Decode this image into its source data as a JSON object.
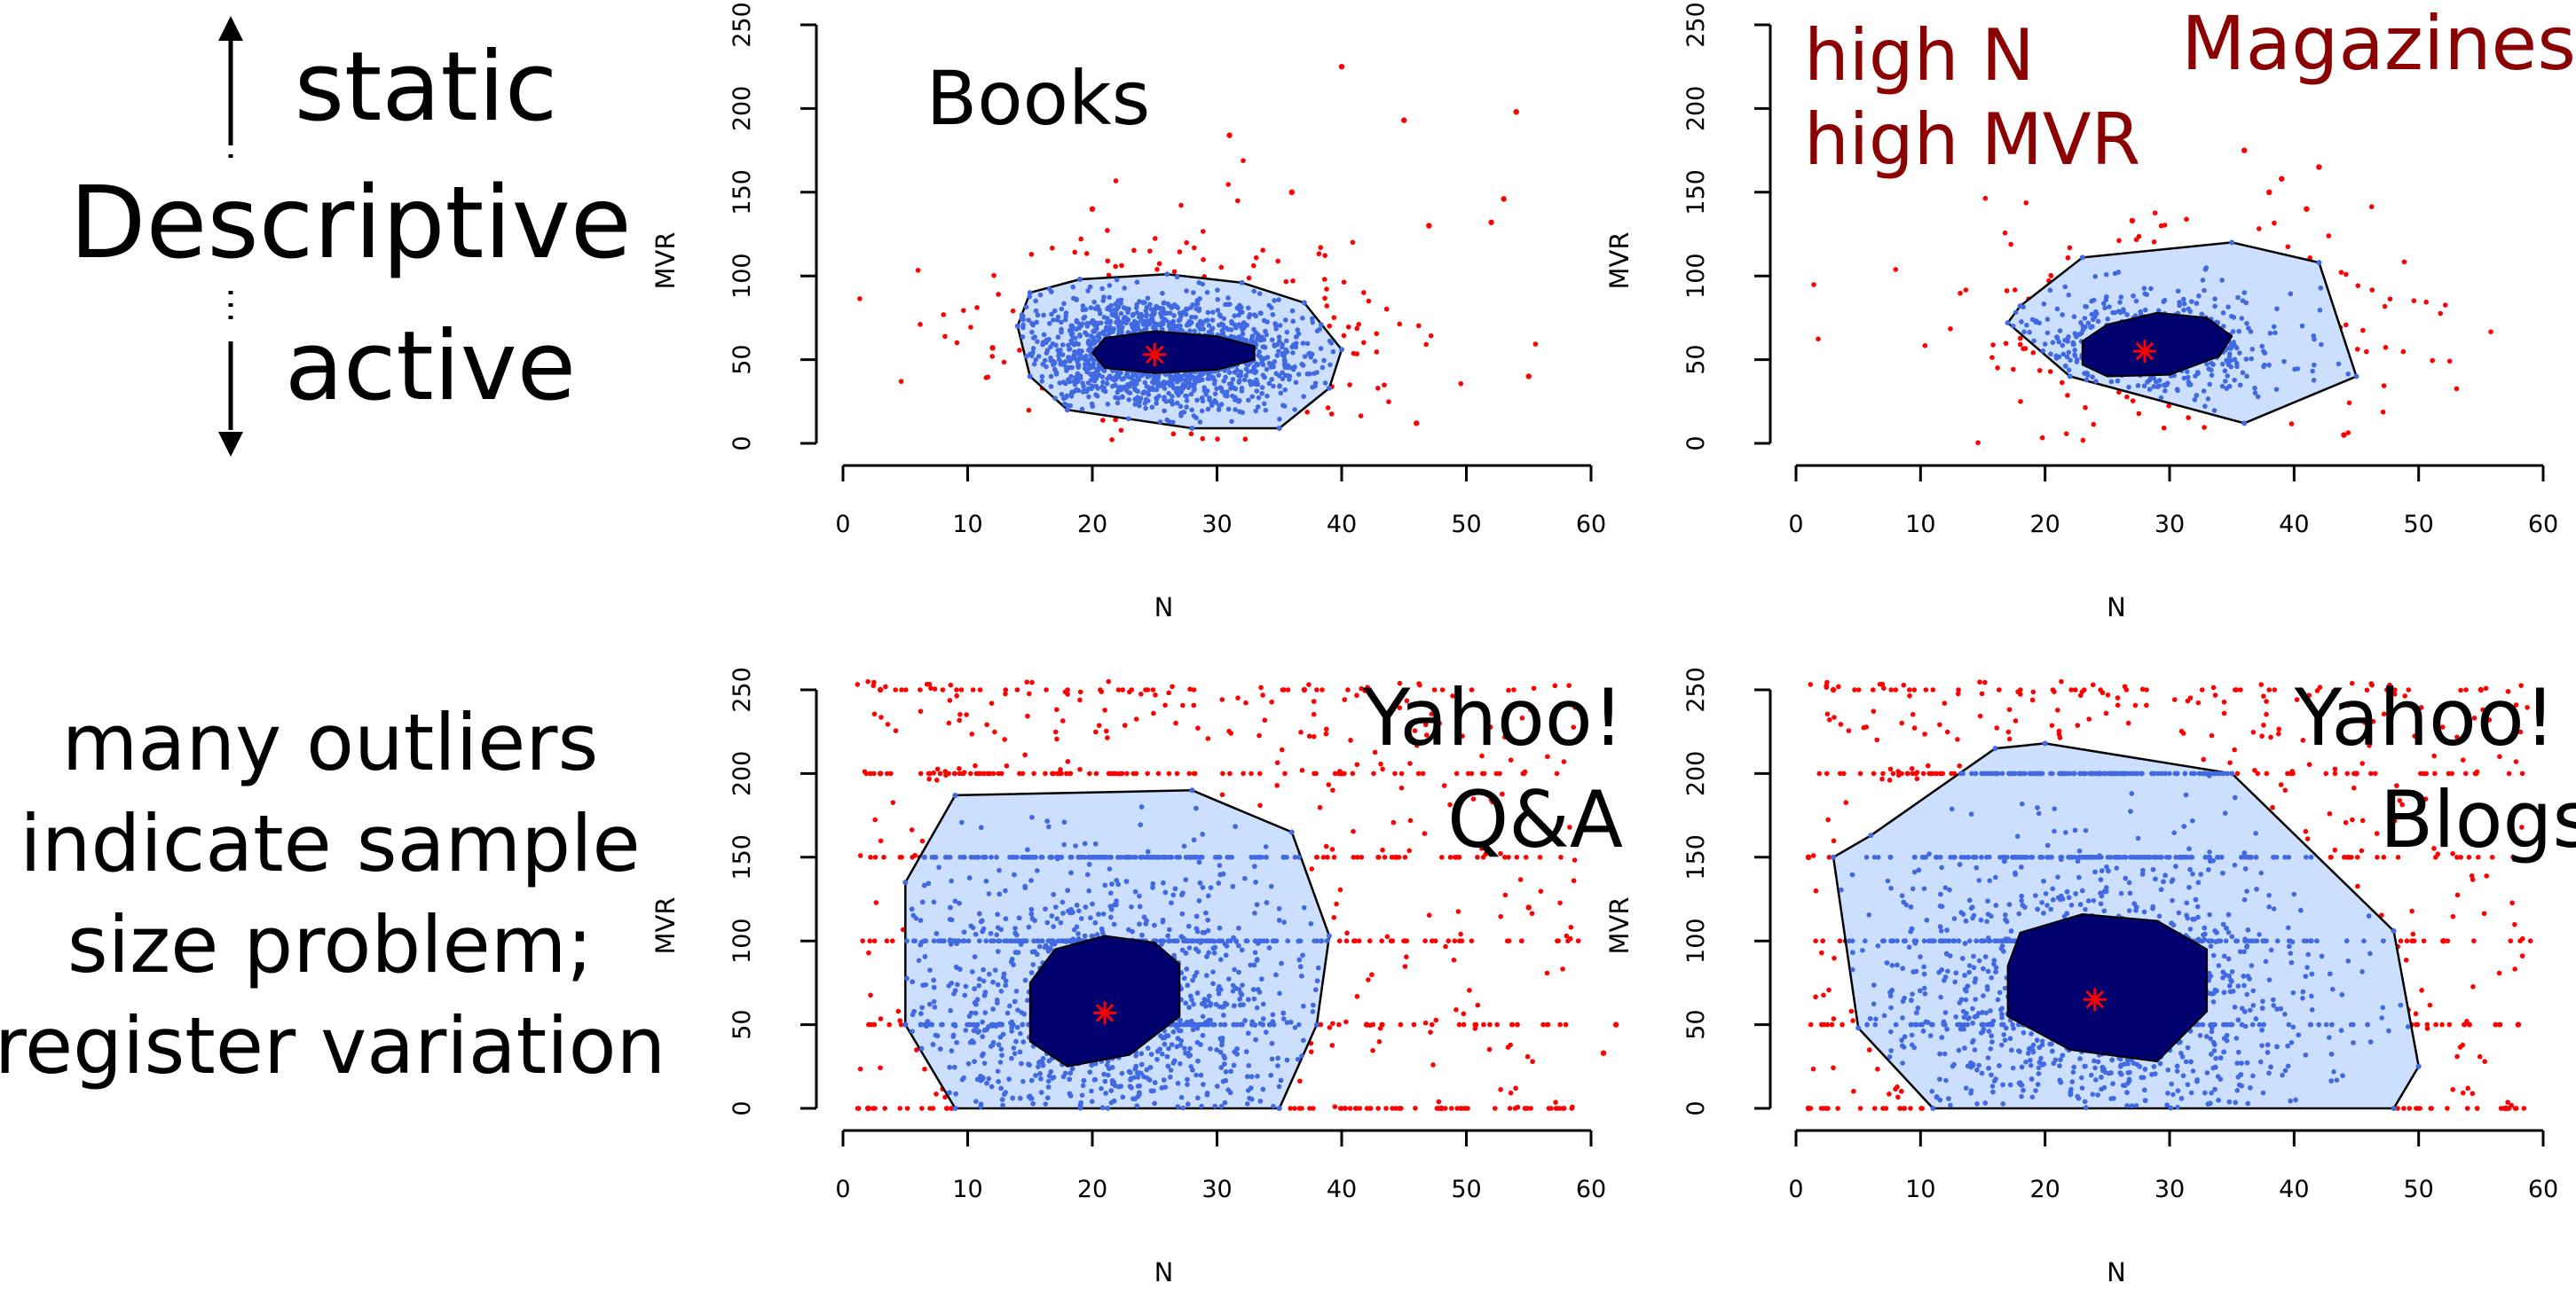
{
  "left_text": {
    "static": "static",
    "descriptive": "Descriptive",
    "active": "active",
    "outliers_lines": [
      "many outliers",
      "indicate sample",
      "size problem;",
      "register variation"
    ]
  },
  "colors": {
    "outlier": "#ff0000",
    "point": "#4169e1",
    "hull_fill": "#cddfff",
    "core": "#00006e",
    "median": "#ff0000",
    "annotation_dark_red": "#8b0000"
  },
  "chart_data": [
    {
      "type": "scatter",
      "subtype": "bagplot",
      "label": "Books",
      "xlabel": "N",
      "ylabel": "MVR",
      "xlim": [
        0,
        60
      ],
      "ylim": [
        0,
        250
      ],
      "xticks": [
        0,
        10,
        20,
        30,
        40,
        50,
        60
      ],
      "yticks": [
        0,
        50,
        100,
        150,
        200,
        250
      ],
      "median": [
        25,
        53
      ],
      "bag": [
        [
          21,
          63
        ],
        [
          25,
          67
        ],
        [
          30,
          64
        ],
        [
          33,
          58
        ],
        [
          33,
          50
        ],
        [
          30,
          44
        ],
        [
          25,
          42
        ],
        [
          21,
          45
        ],
        [
          20,
          54
        ]
      ],
      "fence": [
        [
          15,
          90
        ],
        [
          19,
          98
        ],
        [
          26,
          101
        ],
        [
          32,
          96
        ],
        [
          37,
          84
        ],
        [
          40,
          56
        ],
        [
          39,
          33
        ],
        [
          35,
          9
        ],
        [
          28,
          9
        ],
        [
          18,
          20
        ],
        [
          15,
          40
        ],
        [
          14,
          70
        ]
      ],
      "outliers_sample": [
        [
          40,
          225
        ],
        [
          45,
          193
        ],
        [
          54,
          198
        ],
        [
          31,
          184
        ],
        [
          53,
          146
        ],
        [
          47,
          130
        ],
        [
          52,
          132
        ],
        [
          55,
          40
        ],
        [
          46,
          12
        ],
        [
          12,
          57
        ],
        [
          20,
          140
        ],
        [
          36,
          150
        ]
      ],
      "annotations": []
    },
    {
      "type": "scatter",
      "subtype": "bagplot",
      "label": "Magazines",
      "xlabel": "N",
      "ylabel": "MVR",
      "xlim": [
        0,
        60
      ],
      "ylim": [
        0,
        250
      ],
      "xticks": [
        0,
        10,
        20,
        30,
        40,
        50,
        60
      ],
      "yticks": [
        0,
        50,
        100,
        150,
        200,
        250
      ],
      "median": [
        28,
        55
      ],
      "bag": [
        [
          25,
          71
        ],
        [
          29,
          78
        ],
        [
          33,
          75
        ],
        [
          35,
          64
        ],
        [
          34,
          52
        ],
        [
          30,
          41
        ],
        [
          25,
          40
        ],
        [
          23,
          47
        ],
        [
          23,
          61
        ]
      ],
      "fence": [
        [
          18,
          82
        ],
        [
          23,
          111
        ],
        [
          35,
          120
        ],
        [
          42,
          108
        ],
        [
          45,
          40
        ],
        [
          36,
          12
        ],
        [
          22,
          40
        ],
        [
          17,
          72
        ]
      ],
      "outliers_sample": [
        [
          36,
          175
        ],
        [
          39,
          158
        ],
        [
          42,
          165
        ],
        [
          44,
          5
        ],
        [
          41,
          140
        ],
        [
          27,
          133
        ],
        [
          38,
          150
        ]
      ],
      "annotations": [
        "high N",
        "high MVR"
      ]
    },
    {
      "type": "scatter",
      "subtype": "bagplot",
      "label_lines": [
        "Yahoo!",
        "Q&A"
      ],
      "xlabel": "N",
      "ylabel": "MVR",
      "xlim": [
        0,
        60
      ],
      "ylim": [
        0,
        250
      ],
      "xticks": [
        0,
        10,
        20,
        30,
        40,
        50,
        60
      ],
      "yticks": [
        0,
        50,
        100,
        150,
        200,
        250
      ],
      "median": [
        21,
        57
      ],
      "bag": [
        [
          17,
          95
        ],
        [
          21,
          103
        ],
        [
          25,
          99
        ],
        [
          27,
          86
        ],
        [
          27,
          55
        ],
        [
          23,
          32
        ],
        [
          18,
          25
        ],
        [
          15,
          40
        ],
        [
          15,
          75
        ]
      ],
      "fence": [
        [
          9,
          187
        ],
        [
          28,
          190
        ],
        [
          36,
          165
        ],
        [
          39,
          103
        ],
        [
          38,
          50
        ],
        [
          35,
          0
        ],
        [
          9,
          0
        ],
        [
          5,
          50
        ],
        [
          5,
          135
        ]
      ],
      "outliers_sample": [
        [
          3,
          200
        ],
        [
          40,
          200
        ],
        [
          3,
          250
        ],
        [
          37,
          250
        ],
        [
          2,
          0
        ],
        [
          48,
          0
        ],
        [
          42,
          50
        ],
        [
          62,
          50
        ],
        [
          61,
          33
        ],
        [
          55,
          120
        ]
      ],
      "annotations": []
    },
    {
      "type": "scatter",
      "subtype": "bagplot",
      "label_lines": [
        "Yahoo!",
        "Blogs"
      ],
      "xlabel": "N",
      "ylabel": "MVR",
      "xlim": [
        0,
        60
      ],
      "ylim": [
        0,
        250
      ],
      "xticks": [
        0,
        10,
        20,
        30,
        40,
        50,
        60
      ],
      "yticks": [
        0,
        50,
        100,
        150,
        200,
        250
      ],
      "median": [
        24,
        65
      ],
      "bag": [
        [
          18,
          105
        ],
        [
          23,
          116
        ],
        [
          29,
          112
        ],
        [
          33,
          95
        ],
        [
          33,
          58
        ],
        [
          29,
          28
        ],
        [
          22,
          35
        ],
        [
          17,
          55
        ],
        [
          17,
          85
        ]
      ],
      "fence": [
        [
          6,
          163
        ],
        [
          16,
          215
        ],
        [
          20,
          218
        ],
        [
          35,
          200
        ],
        [
          48,
          106
        ],
        [
          50,
          25
        ],
        [
          48,
          0
        ],
        [
          11,
          0
        ],
        [
          5,
          48
        ],
        [
          3,
          150
        ]
      ],
      "outliers_sample": [
        [
          3,
          250
        ],
        [
          55,
          250
        ],
        [
          45,
          200
        ],
        [
          1,
          150
        ],
        [
          1,
          0
        ],
        [
          57,
          0
        ],
        [
          58,
          50
        ],
        [
          52,
          100
        ]
      ],
      "annotations": []
    }
  ]
}
